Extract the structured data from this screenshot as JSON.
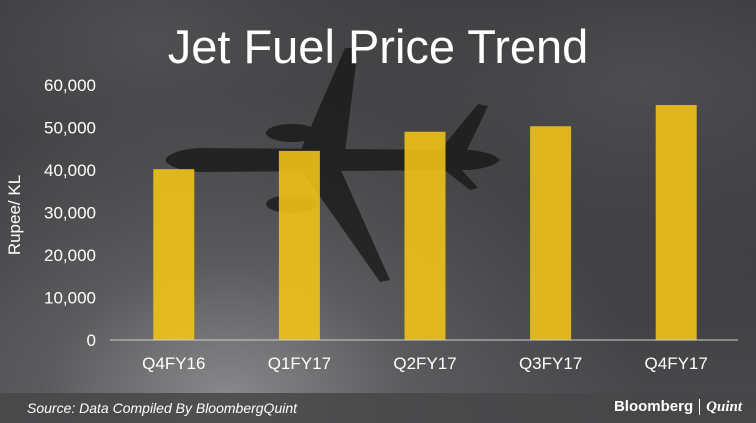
{
  "chart_data": {
    "type": "bar",
    "title": "Jet Fuel Price Trend",
    "ylabel": "Rupee/ KL",
    "xlabel": "",
    "categories": [
      "Q4FY16",
      "Q1FY17",
      "Q2FY17",
      "Q3FY17",
      "Q4FY17"
    ],
    "values": [
      40200,
      44500,
      49000,
      50300,
      55300
    ],
    "ylim": [
      0,
      60000
    ],
    "yticks": [
      0,
      10000,
      20000,
      30000,
      40000,
      50000,
      60000
    ],
    "ytick_labels": [
      "0",
      "10,000",
      "20,000",
      "30,000",
      "40,000",
      "50,000",
      "60,000"
    ],
    "grid": false,
    "bar_color": "#f5c518"
  },
  "footer": {
    "source": "Source: Data Compiled By BloombergQuint",
    "logo_left": "Bloomberg",
    "logo_right": "Quint"
  }
}
